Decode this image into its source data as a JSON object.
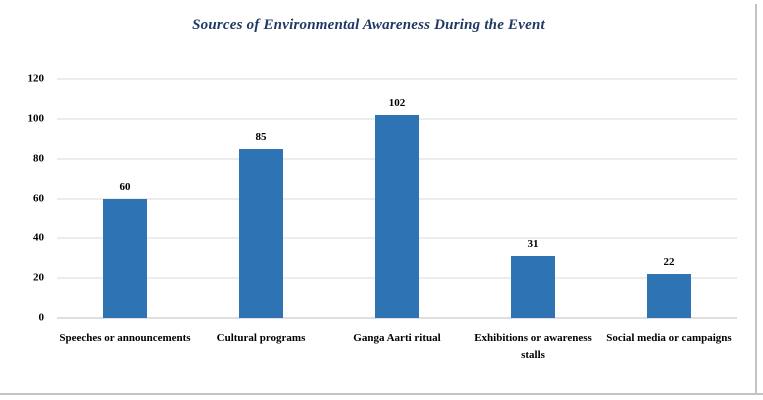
{
  "chart_data": {
    "type": "bar",
    "title": "Sources of Environmental Awareness During the Event",
    "categories": [
      "Speeches or announcements",
      "Cultural programs",
      "Ganga Aarti ritual",
      "Exhibitions or awareness stalls",
      "Social media or campaigns"
    ],
    "values": [
      60,
      85,
      102,
      31,
      22
    ],
    "data_labels": [
      "60",
      "85",
      "102",
      "31",
      "22"
    ],
    "xlabel": "",
    "ylabel": "",
    "ylim": [
      0,
      120
    ],
    "yticks": [
      0,
      20,
      40,
      60,
      80,
      100,
      120
    ],
    "grid": true,
    "legend": false
  },
  "styles": {
    "bar_color": "#2E74B5",
    "title_color": "#1F3864",
    "gridline_color": "#D9D9D9",
    "axis_line_color": "#BFBFBF",
    "label_color": "#000000",
    "frame_border_color": "#C3C3C3"
  }
}
